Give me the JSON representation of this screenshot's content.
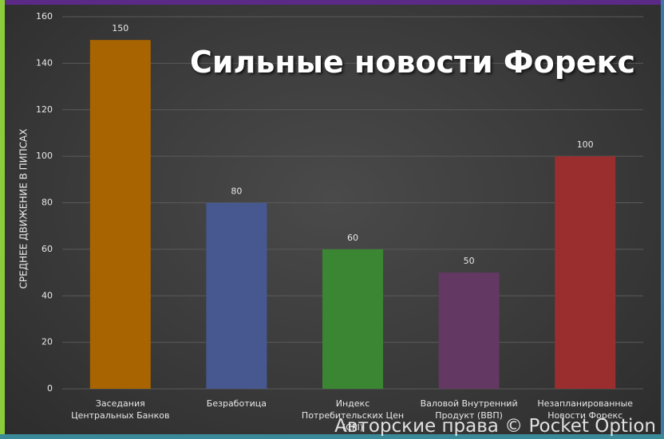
{
  "chart_data": {
    "type": "bar",
    "title": "Сильные новости Форекс",
    "y_label": "СРЕДНЕЕ ДВИЖЕНИЕ В ПИПСАХ",
    "categories": [
      "Заседания Центральных Банков",
      "Безработица",
      "Индекс Потребительских Цен (CPI)",
      "Валовой Внутренний Продукт (ВВП)",
      "Незапланированные Новости Форекс"
    ],
    "values": [
      150,
      80,
      60,
      50,
      100
    ],
    "colors": [
      "#a86400",
      "#475890",
      "#3a8633",
      "#633863",
      "#9a2e2e"
    ],
    "ylim": [
      0,
      160
    ],
    "yticks": [
      0,
      20,
      40,
      60,
      80,
      100,
      120,
      140,
      160
    ],
    "grid": true,
    "watermark": "Авторские права © Pocket Option"
  }
}
